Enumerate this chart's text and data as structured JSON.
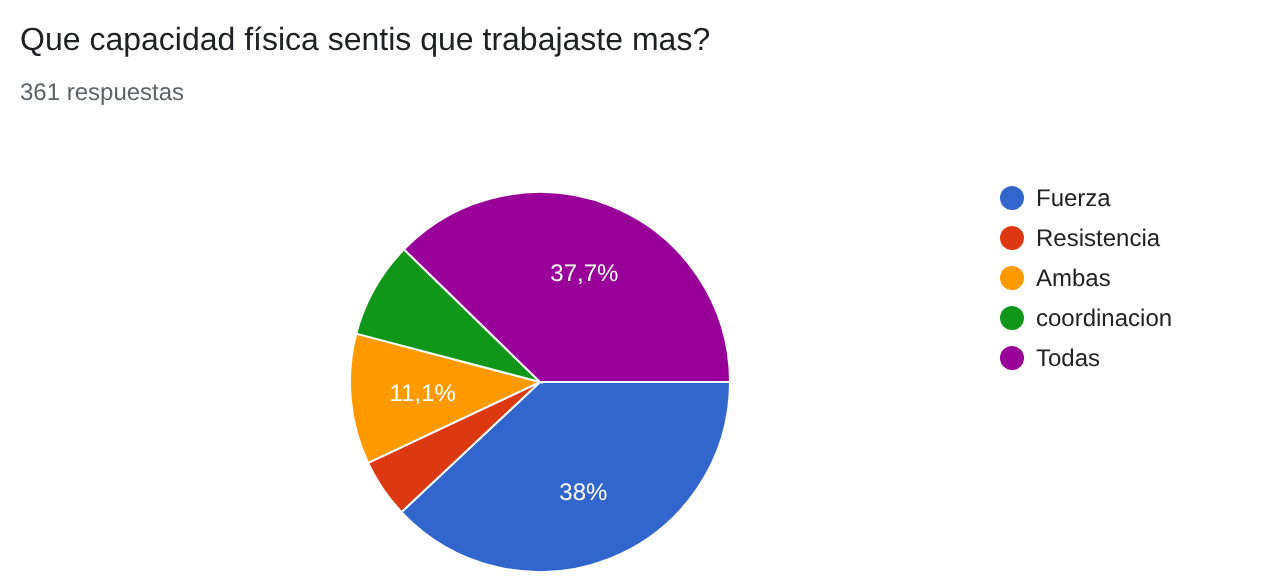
{
  "chart_data": {
    "type": "pie",
    "title": "Que capacidad física sentis que trabajaste mas?",
    "subtitle": "361 respuestas",
    "categories": [
      "Fuerza",
      "Resistencia",
      "Ambas",
      "coordinacion",
      "Todas"
    ],
    "values": [
      38,
      5,
      11.1,
      8.2,
      37.7
    ],
    "colors": [
      "#3366cc",
      "#dc3912",
      "#ff9900",
      "#109618",
      "#990099"
    ],
    "value_labels": [
      "38%",
      null,
      "11,1%",
      null,
      "37,7%"
    ],
    "legend": "right"
  }
}
